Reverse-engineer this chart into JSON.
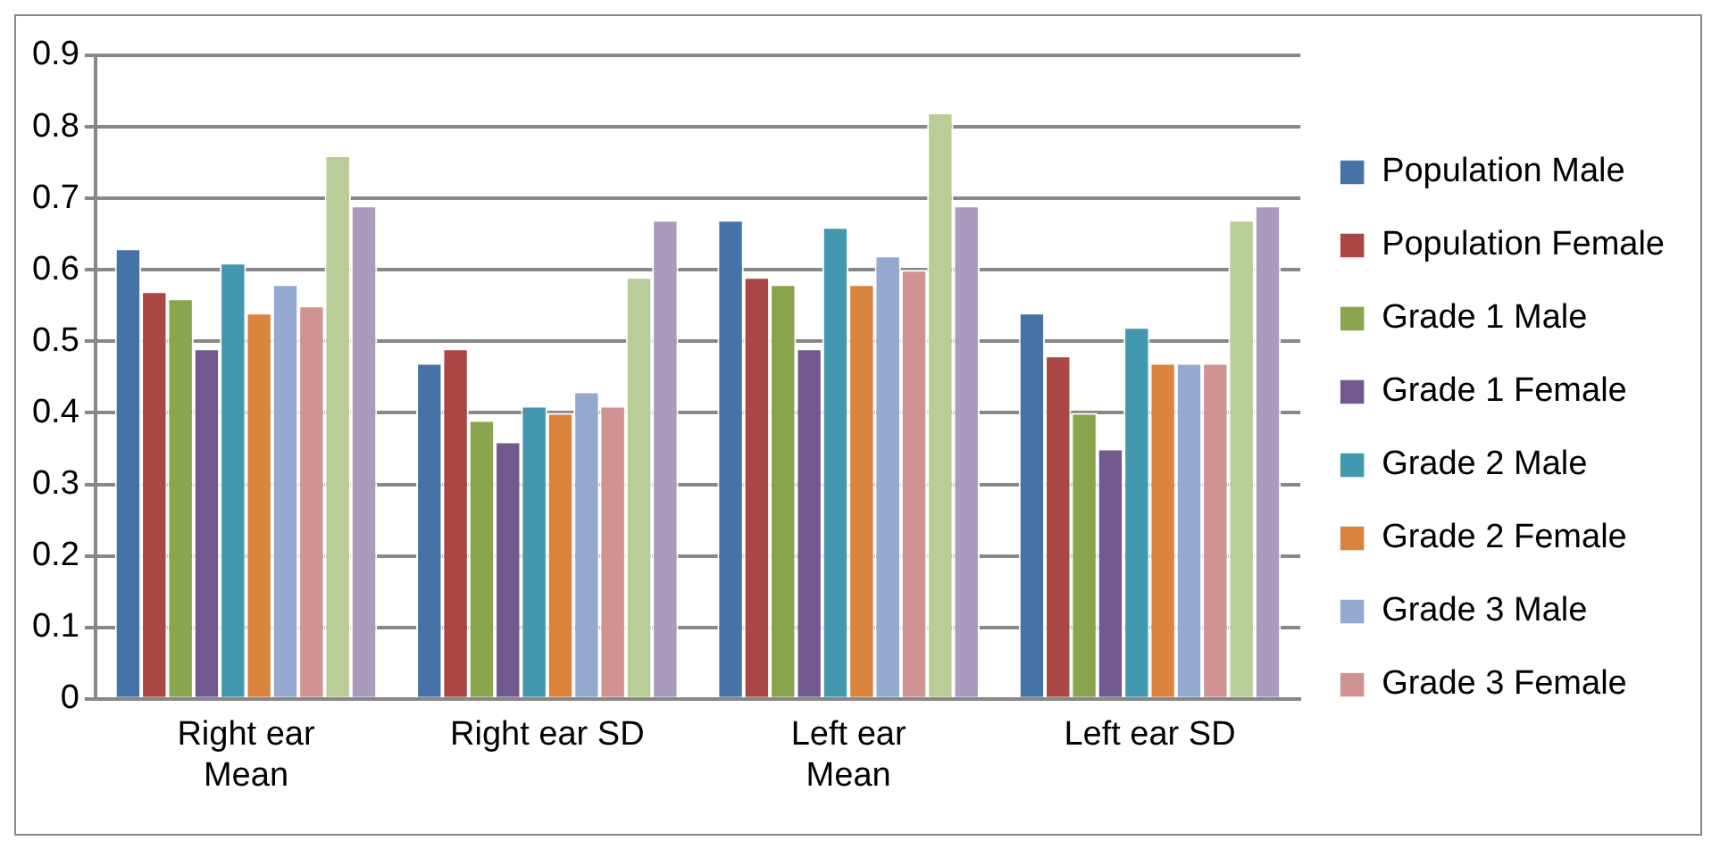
{
  "chart_data": {
    "type": "bar",
    "categories": [
      "Right ear Mean",
      "Right ear SD",
      "Left ear Mean",
      "Left ear SD"
    ],
    "series": [
      {
        "name": "Population Male",
        "color": "#4572a7",
        "values": [
          0.63,
          0.47,
          0.67,
          0.54
        ]
      },
      {
        "name": "Population Female",
        "color": "#aa4643",
        "values": [
          0.57,
          0.49,
          0.59,
          0.48
        ]
      },
      {
        "name": "Grade 1 Male",
        "color": "#89a54e",
        "values": [
          0.56,
          0.39,
          0.58,
          0.4
        ]
      },
      {
        "name": "Grade 1 Female",
        "color": "#71588f",
        "values": [
          0.49,
          0.36,
          0.49,
          0.35
        ]
      },
      {
        "name": "Grade 2 Male",
        "color": "#4198af",
        "values": [
          0.61,
          0.41,
          0.66,
          0.52
        ]
      },
      {
        "name": "Grade 2 Female",
        "color": "#db843d",
        "values": [
          0.54,
          0.4,
          0.58,
          0.47
        ]
      },
      {
        "name": "Grade 3 Male",
        "color": "#93a9cf",
        "values": [
          0.58,
          0.43,
          0.62,
          0.47
        ]
      },
      {
        "name": "Grade 3 Female",
        "color": "#d19392",
        "values": [
          0.55,
          0.41,
          0.6,
          0.47
        ]
      },
      {
        "color": "#b9cd96",
        "values": [
          0.76,
          0.59,
          0.82,
          0.67
        ]
      },
      {
        "color": "#a99bbd",
        "values": [
          0.69,
          0.67,
          0.69,
          0.69
        ]
      }
    ],
    "ylim": [
      0,
      0.9
    ],
    "yticks": [
      0,
      0.1,
      0.2,
      0.3,
      0.4,
      0.5,
      0.6,
      0.7,
      0.8,
      0.9
    ],
    "grid": "y",
    "legend": "right"
  }
}
